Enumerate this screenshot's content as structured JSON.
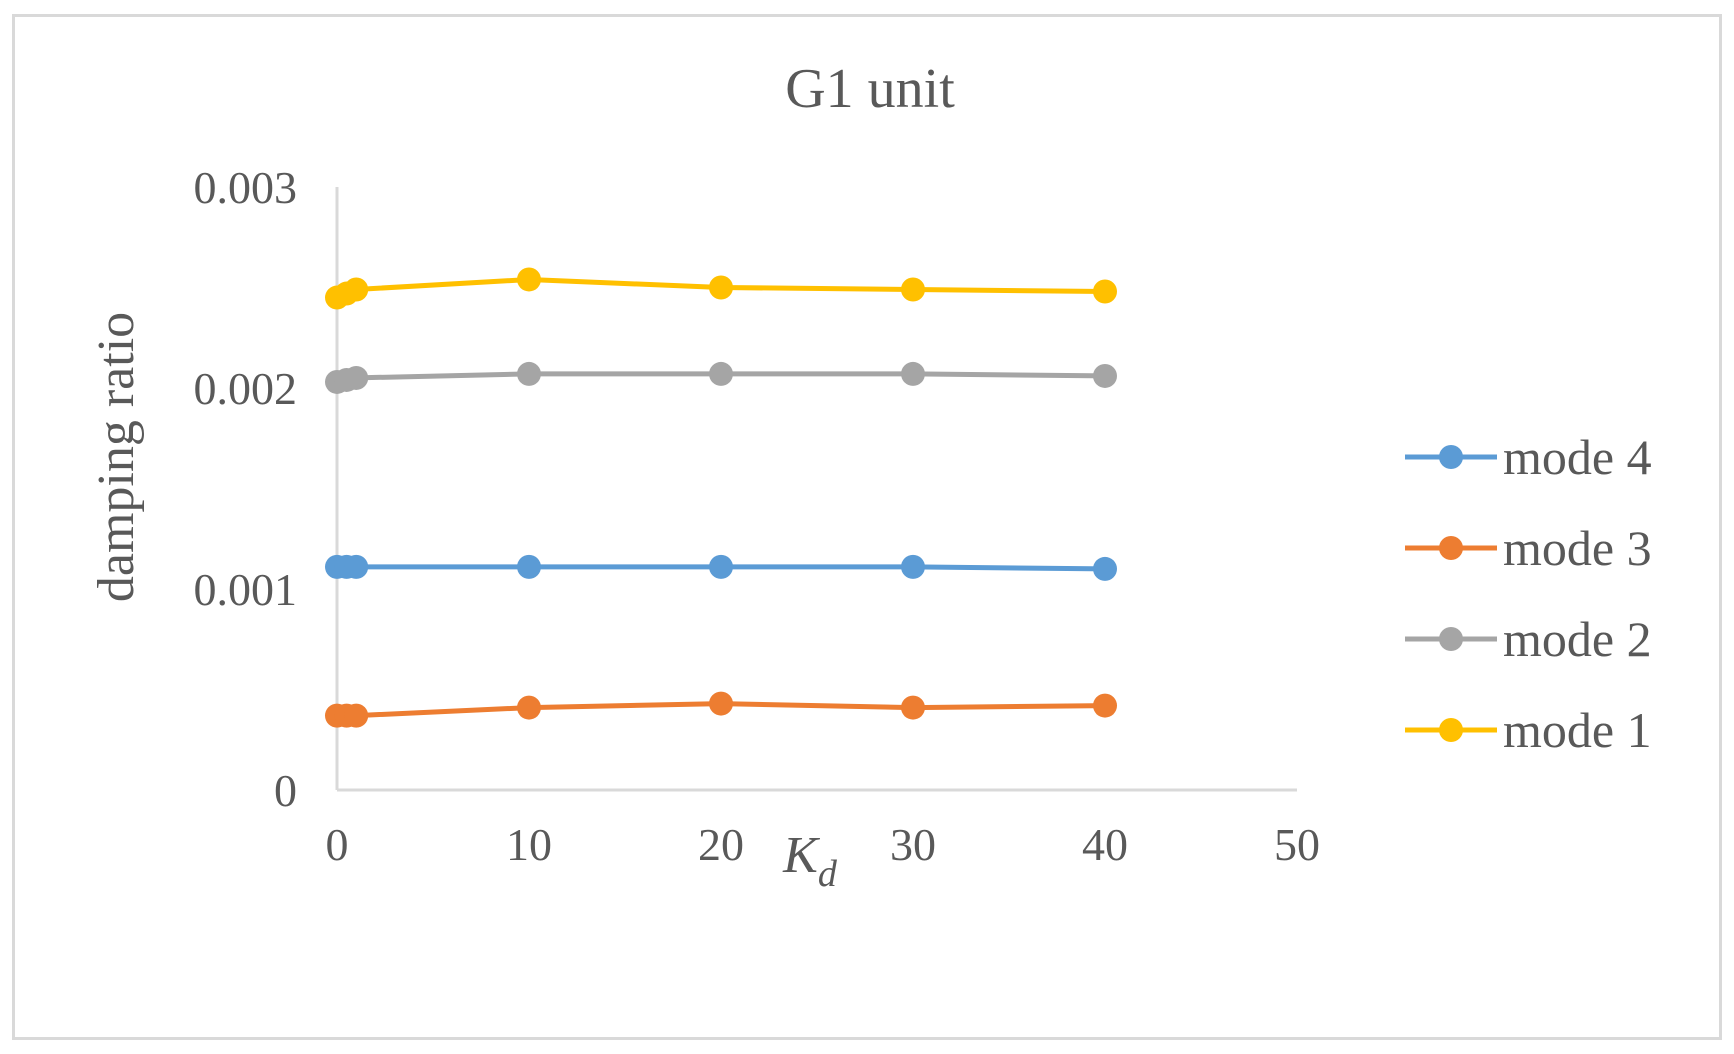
{
  "chart_data": {
    "type": "line",
    "title": "G1 unit",
    "xlabel": "K",
    "xlabel_subscript": "d",
    "ylabel": "damping ratio",
    "xlim": [
      0,
      50
    ],
    "ylim": [
      0,
      0.003
    ],
    "x_ticks": [
      0,
      10,
      20,
      30,
      40,
      50
    ],
    "y_ticks": [
      0,
      0.001,
      0.002,
      0.003
    ],
    "x_tick_labels": [
      "0",
      "10",
      "20",
      "30",
      "40",
      "50"
    ],
    "y_tick_labels": [
      "0",
      "0.001",
      "0.002",
      "0.003"
    ],
    "x": [
      0,
      0.5,
      1,
      10,
      20,
      30,
      40
    ],
    "grid": false,
    "legend_position": "right",
    "series": [
      {
        "name": "mode 4",
        "color": "#5b9bd5",
        "values": [
          0.00111,
          0.00111,
          0.00111,
          0.00111,
          0.00111,
          0.00111,
          0.0011
        ]
      },
      {
        "name": "mode 3",
        "color": "#ed7d31",
        "values": [
          0.00037,
          0.00037,
          0.00037,
          0.00041,
          0.00043,
          0.00041,
          0.00042
        ]
      },
      {
        "name": "mode 2",
        "color": "#a5a5a5",
        "values": [
          0.00203,
          0.00204,
          0.00205,
          0.00207,
          0.00207,
          0.00207,
          0.00206
        ]
      },
      {
        "name": "mode 1",
        "color": "#ffc000",
        "values": [
          0.00245,
          0.00247,
          0.00249,
          0.00254,
          0.0025,
          0.00249,
          0.00248
        ]
      }
    ]
  }
}
